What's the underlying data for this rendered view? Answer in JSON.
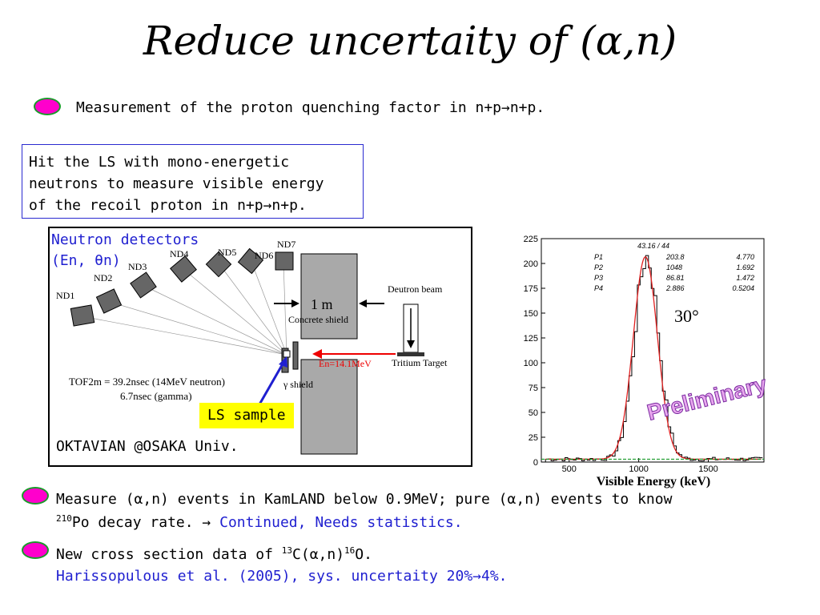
{
  "title": "Reduce uncertaity of (α,n)",
  "bullet1": {
    "text": "Measurement of the proton quenching factor in n+p→n+p."
  },
  "box": {
    "line1": "Hit the LS with mono-energetic",
    "line2": "neutrons to measure visible energy",
    "line3": "of the recoil proton in n+p→n+p."
  },
  "setup": {
    "nd_title1": "Neutron detectors",
    "nd_title2": "(En, θn)",
    "detectors": [
      "ND1",
      "ND2",
      "ND3",
      "ND4",
      "ND5",
      "ND6",
      "ND7"
    ],
    "thickness": "1 m",
    "concrete": "Concrete shield",
    "beam": "Deutron beam",
    "target": "Tritium Target",
    "energy": "En=14.1MeV",
    "gamma_shield": "γ shield",
    "tof1": "TOF2m = 39.2nsec (14MeV neutron)",
    "tof2": "6.7nsec (gamma)",
    "ls_sample": "LS sample",
    "lab": "OKTAVIAN @OSAKA Univ."
  },
  "plot": {
    "fit_header": "43.16  /  44",
    "params": [
      {
        "name": "P1",
        "value": "203.8",
        "error": "4.770"
      },
      {
        "name": "P2",
        "value": "1048",
        "error": "1.692"
      },
      {
        "name": "P3",
        "value": "86.81",
        "error": "1.472"
      },
      {
        "name": "P4",
        "value": "2.886",
        "error": "0.5204"
      }
    ],
    "angle": "30°",
    "watermark": "Preliminary",
    "xlabel": "Visible Energy (keV)",
    "y_ticks": [
      "0",
      "25",
      "50",
      "75",
      "100",
      "125",
      "150",
      "175",
      "200",
      "225"
    ],
    "x_ticks": [
      "500",
      "1000",
      "1500"
    ]
  },
  "bullet2": {
    "line1": "Measure (α,n) events in KamLAND below 0.9MeV; pure (α,n) events to know",
    "line2_sup": "210",
    "line2_a": "Po decay rate.  → ",
    "line2_b": "Continued, Needs statistics."
  },
  "bullet3": {
    "line1_a": "New cross section data of ",
    "sup1": "13",
    "line1_b": "C(α,n)",
    "sup2": "16",
    "line1_c": "O.",
    "line2": "Harissopulous et al. (2005), sys. uncertaity 20%→4%."
  }
}
